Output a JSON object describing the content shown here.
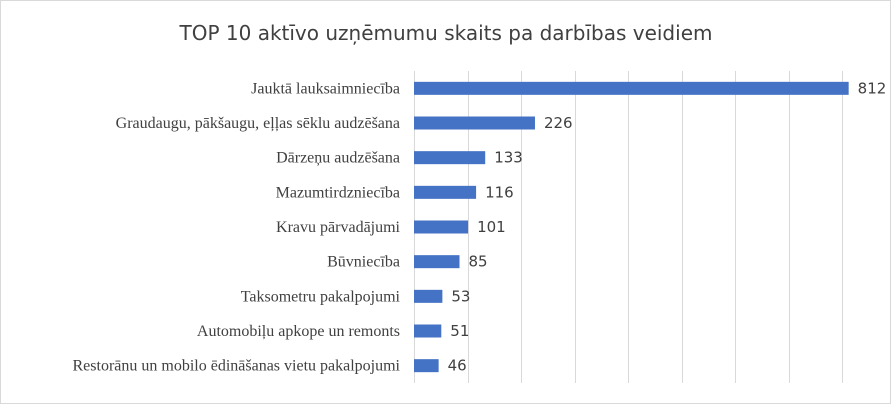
{
  "chart_data": {
    "type": "bar",
    "orientation": "horizontal",
    "title": "TOP 10 aktīvo uzņēmumu skaits pa darbības veidiem",
    "categories": [
      "Jauktā lauksaimniecība",
      "Graudaugu, pākšaugu, eļļas sēklu audzēšana",
      "Dārzeņu audzēšana",
      "Mazumtirdzniecība",
      "Kravu pārvadājumi",
      "Būvniecība",
      "Taksometru pakalpojumi",
      "Automobiļu apkope un remonts",
      "Restorānu un mobilo ēdināšanas vietu pakalpojumi"
    ],
    "values": [
      812,
      226,
      133,
      116,
      101,
      85,
      53,
      51,
      46
    ],
    "xlim": [
      0,
      850
    ],
    "grid": true,
    "data_labels": true,
    "bar_color": "#4472C4"
  }
}
